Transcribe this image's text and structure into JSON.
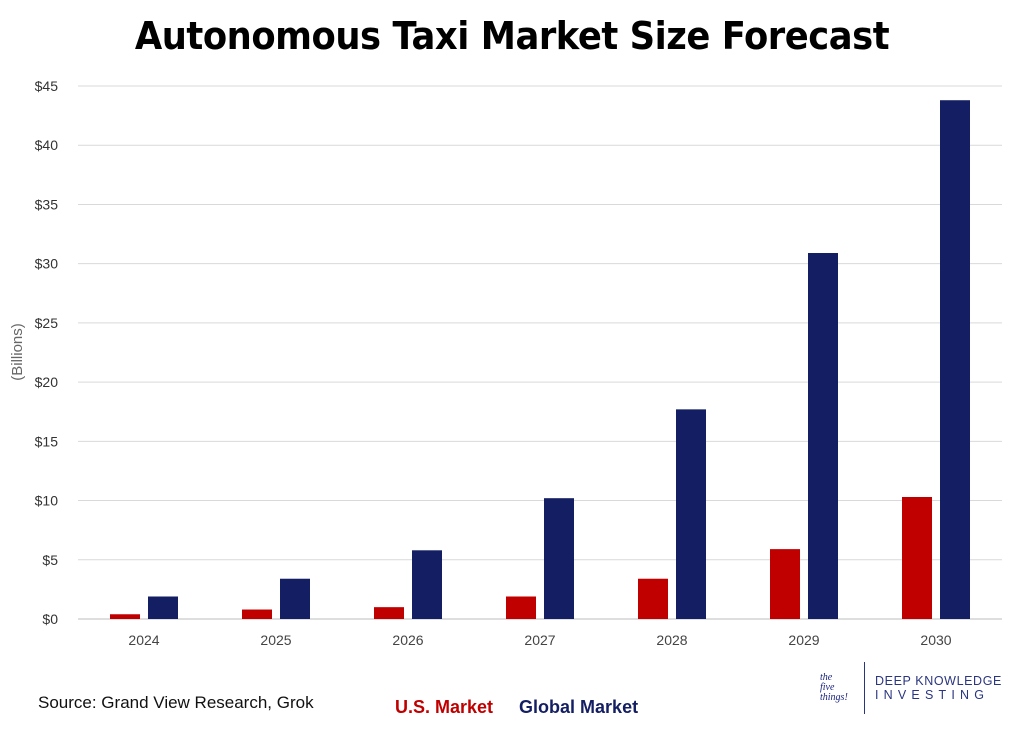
{
  "chart_data": {
    "type": "bar",
    "title": "Autonomous Taxi Market Size Forecast",
    "ylabel": "(Billions)",
    "xlabel": "",
    "ylim": [
      0,
      45
    ],
    "y_ticks": [
      "$0",
      "$5",
      "$10",
      "$15",
      "$20",
      "$25",
      "$30",
      "$35",
      "$40",
      "$45"
    ],
    "y_tick_values": [
      0,
      5,
      10,
      15,
      20,
      25,
      30,
      35,
      40,
      45
    ],
    "grid": true,
    "legend_placement": "bottom-center",
    "categories": [
      "2024",
      "2025",
      "2026",
      "2027",
      "2028",
      "2029",
      "2030"
    ],
    "series": [
      {
        "name": "U.S. Market",
        "color": "#c00000",
        "values": [
          0.4,
          0.8,
          1.0,
          1.9,
          3.4,
          5.9,
          10.3
        ]
      },
      {
        "name": "Global Market",
        "color": "#141f63",
        "values": [
          1.9,
          3.4,
          5.8,
          10.2,
          17.7,
          30.9,
          43.8
        ]
      }
    ]
  },
  "source": "Source: Grand View Research, Grok",
  "logo": {
    "small_text": [
      "the",
      "five",
      "things!"
    ],
    "line1": "DEEP KNOWLEDGE",
    "line2": "INVESTING"
  }
}
